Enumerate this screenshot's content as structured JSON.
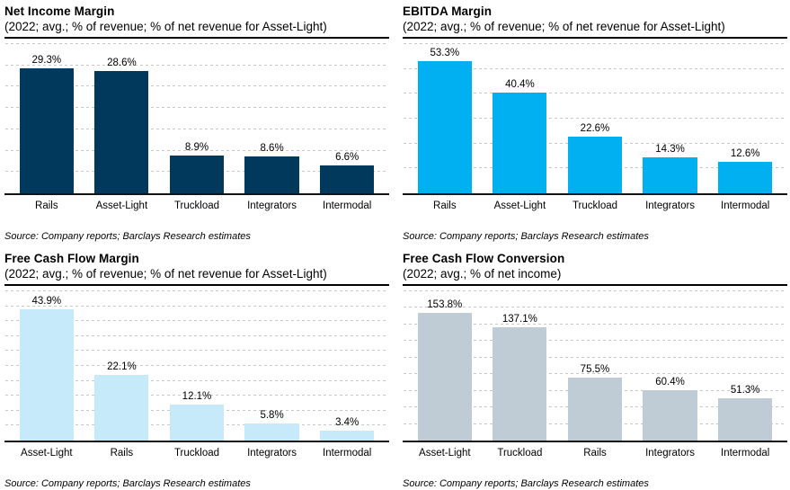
{
  "page": {
    "background": "#ffffff",
    "source_note": "Source: Company reports; Barclays Research estimates"
  },
  "colors": {
    "navy": "#00395c",
    "cyan": "#00b0f0",
    "light_blue": "#c7eafb",
    "gray": "#bfccd5",
    "gridline": "#c7c7c7",
    "axis": "#131313",
    "text": "#000000"
  },
  "chart_data": [
    {
      "id": "net-income-margin",
      "type": "bar",
      "title": "Net Income Margin",
      "subtitle": "(2022; avg.; % of revenue; % of net revenue for Asset-Light)",
      "categories": [
        "Rails",
        "Asset-Light",
        "Truckload",
        "Integrators",
        "Intermodal"
      ],
      "values": [
        29.3,
        28.6,
        8.9,
        8.6,
        6.6
      ],
      "value_labels": [
        "29.3%",
        "28.6%",
        "8.9%",
        "8.6%",
        "6.6%"
      ],
      "ylim": [
        0,
        35
      ],
      "grid_step": 5,
      "grid": "dashed-horizontal",
      "legend": "none",
      "bar_color": "#00395c",
      "xlabel": "",
      "ylabel": "",
      "source": "Source: Company reports; Barclays Research estimates"
    },
    {
      "id": "ebitda-margin",
      "type": "bar",
      "title": "EBITDA Margin",
      "subtitle": "(2022; avg.; % of revenue; % of net revenue for Asset-Light)",
      "categories": [
        "Rails",
        "Asset-Light",
        "Truckload",
        "Integrators",
        "Intermodal"
      ],
      "values": [
        53.3,
        40.4,
        22.6,
        14.3,
        12.6
      ],
      "value_labels": [
        "53.3%",
        "40.4%",
        "22.6%",
        "14.3%",
        "12.6%"
      ],
      "ylim": [
        0,
        60
      ],
      "grid_step": 10,
      "grid": "dashed-horizontal",
      "legend": "none",
      "bar_color": "#00b0f0",
      "xlabel": "",
      "ylabel": "",
      "source": "Source: Company reports; Barclays Research estimates"
    },
    {
      "id": "free-cash-flow-margin",
      "type": "bar",
      "title": "Free Cash Flow Margin",
      "subtitle": "(2022; avg.; % of revenue; % of net revenue for Asset-Light)",
      "categories": [
        "Asset-Light",
        "Rails",
        "Truckload",
        "Integrators",
        "Intermodal"
      ],
      "values": [
        43.9,
        22.1,
        12.1,
        5.8,
        3.4
      ],
      "value_labels": [
        "43.9%",
        "22.1%",
        "12.1%",
        "5.8%",
        "3.4%"
      ],
      "ylim": [
        0,
        50
      ],
      "grid_step": 5,
      "grid": "dashed-horizontal",
      "legend": "none",
      "bar_color": "#c7eafb",
      "xlabel": "",
      "ylabel": "",
      "source": "Source: Company reports; Barclays Research estimates"
    },
    {
      "id": "free-cash-flow-conversion",
      "type": "bar",
      "title": "Free Cash Flow Conversion",
      "subtitle": "(2022; avg.; % of net income)",
      "categories": [
        "Asset-Light",
        "Truckload",
        "Rails",
        "Integrators",
        "Intermodal"
      ],
      "values": [
        153.8,
        137.1,
        75.5,
        60.4,
        51.3
      ],
      "value_labels": [
        "153.8%",
        "137.1%",
        "75.5%",
        "60.4%",
        "51.3%"
      ],
      "ylim": [
        0,
        180
      ],
      "grid_step": 20,
      "grid": "dashed-horizontal",
      "legend": "none",
      "bar_color": "#bfccd5",
      "xlabel": "",
      "ylabel": "",
      "source": "Source: Company reports; Barclays Research estimates"
    }
  ]
}
